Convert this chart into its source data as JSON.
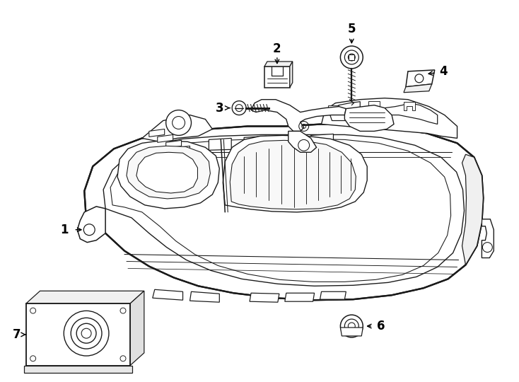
{
  "bg_color": "#ffffff",
  "line_color": "#1a1a1a",
  "lw": 1.1,
  "fig_width": 7.34,
  "fig_height": 5.4,
  "dpi": 100
}
